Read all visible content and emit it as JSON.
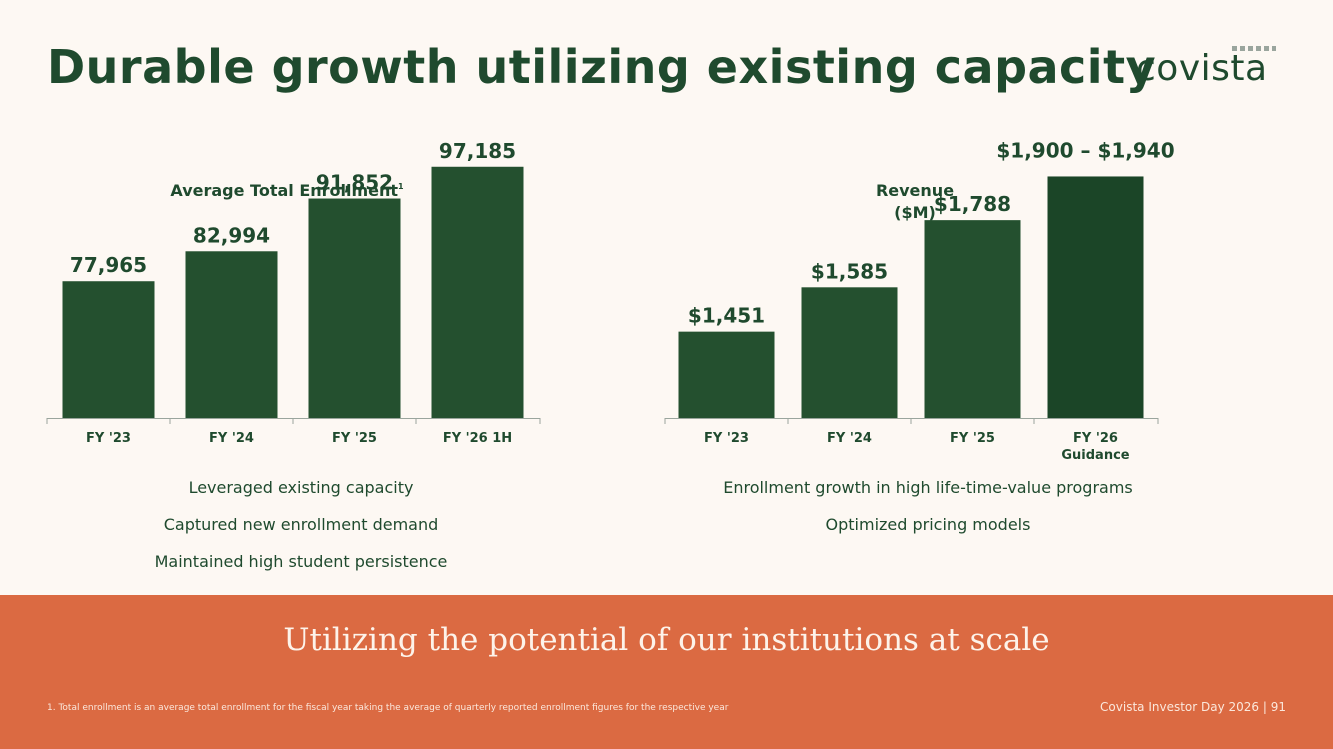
{
  "header": {
    "title": "Durable growth utilizing existing capacity",
    "logo_text": "covista"
  },
  "chart_data": [
    {
      "type": "bar",
      "title": "Average Total Enrollment",
      "title_footnote_marker": "1",
      "categories": [
        "FY '23",
        "FY '24",
        "FY '25",
        "FY '26 1H"
      ],
      "values": [
        77965,
        82994,
        91852,
        97185
      ],
      "value_labels": [
        "77,965",
        "82,994",
        "91,852",
        "97,185"
      ],
      "ylim": [
        55000,
        100000
      ],
      "bar_color": "#24502f"
    },
    {
      "type": "bar",
      "title": "Revenue",
      "subtitle": "($M)",
      "categories": [
        "FY '23",
        "FY '24",
        "FY '25",
        "FY '26"
      ],
      "category_sublabels": [
        "",
        "",
        "",
        "Guidance"
      ],
      "values": [
        1451,
        1585,
        1788,
        1920
      ],
      "value_labels": [
        "$1,451",
        "$1,585",
        "$1,788",
        "$1,900 – $1,940"
      ],
      "ylim": [
        1190,
        2000
      ],
      "bar_colors": [
        "#24502f",
        "#24502f",
        "#24502f",
        "#1b4527"
      ]
    }
  ],
  "left_bullets": [
    "Leveraged existing capacity",
    "Captured new enrollment demand",
    "Maintained high student persistence"
  ],
  "right_bullets": [
    "Enrollment growth in high life-time-value programs",
    "Optimized pricing models"
  ],
  "banner": {
    "tagline": "Utilizing the potential of our institutions at scale",
    "footnote": "1.  Total enrollment is an average total enrollment for the fiscal year taking the average of quarterly reported enrollment figures for the respective year",
    "footer_right": "Covista Investor Day 2026 |  91"
  },
  "colors": {
    "background": "#fdf8f3",
    "primary_green": "#1f4a2e",
    "banner_orange": "#db6a42"
  }
}
